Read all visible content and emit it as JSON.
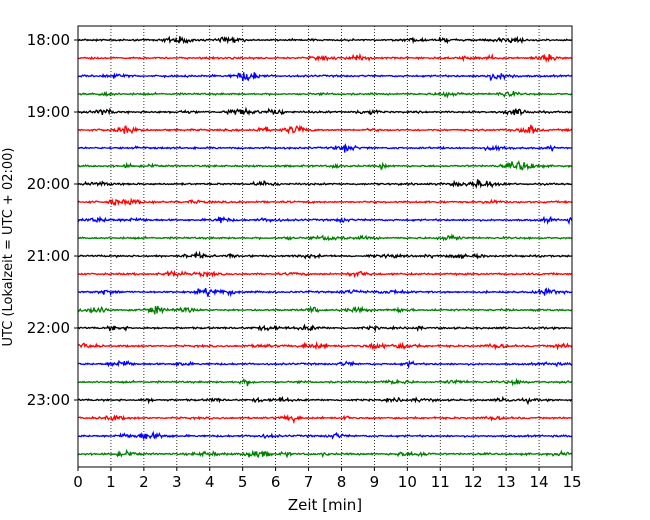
{
  "chart_data": {
    "type": "line",
    "title": "",
    "xlabel": "Zeit  [min]",
    "ylabel": "UTC (Lokalzeit = UTC + 02:00)",
    "xlim": [
      0,
      15
    ],
    "x_ticks": [
      "0",
      "1",
      "2",
      "3",
      "4",
      "5",
      "6",
      "7",
      "8",
      "9",
      "10",
      "11",
      "12",
      "13",
      "14",
      "15"
    ],
    "y_ticks": [
      "18:00",
      "19:00",
      "20:00",
      "21:00",
      "22:00",
      "23:00"
    ],
    "grid": "vertical dotted lines at each minute",
    "trace_start_times": [
      "18:00",
      "18:15",
      "18:30",
      "18:45",
      "19:00",
      "19:15",
      "19:30",
      "19:45",
      "20:00",
      "20:15",
      "20:30",
      "20:45",
      "21:00",
      "21:15",
      "21:30",
      "21:45",
      "22:00",
      "22:15",
      "22:30",
      "22:45",
      "23:00",
      "23:15",
      "23:30",
      "23:45"
    ],
    "trace_minutes_per_line": 15,
    "colors": [
      "#000000",
      "#ff0000",
      "#0000ff",
      "#008000"
    ]
  }
}
